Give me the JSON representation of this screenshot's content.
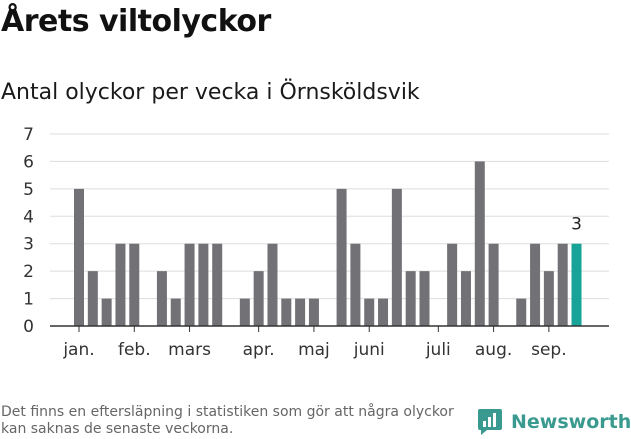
{
  "title": "Årets viltolyckor",
  "subtitle": "Antal olyckor per vecka i Örnsköldsvik",
  "footnote": "Det finns en eftersläpning i statistiken som gör att några olyckor kan saknas de senaste veckorna.",
  "brand": {
    "name": "Newsworthy",
    "icon": "newsworthy-logo-icon"
  },
  "colors": {
    "bar": "#727176",
    "highlight": "#17a398",
    "grid": "#dddddd",
    "axis": "#333333",
    "text": "#333333"
  },
  "chart_data": {
    "type": "bar",
    "title": "Antal olyckor per vecka i Örnsköldsvik",
    "xlabel": "",
    "ylabel": "",
    "ylim": [
      0,
      7
    ],
    "yticks": [
      0,
      1,
      2,
      3,
      4,
      5,
      6,
      7
    ],
    "grid": true,
    "legend": "none",
    "values": [
      5,
      2,
      1,
      3,
      3,
      0,
      2,
      1,
      3,
      3,
      3,
      0,
      1,
      2,
      3,
      1,
      1,
      1,
      0,
      5,
      3,
      1,
      1,
      5,
      2,
      2,
      0,
      3,
      2,
      6,
      3,
      0,
      1,
      3,
      2,
      3,
      3
    ],
    "highlight_index": 36,
    "data_labels": [
      {
        "index": 36,
        "text": "3"
      }
    ],
    "month_labels": [
      {
        "label": "jan.",
        "week": 1
      },
      {
        "label": "feb.",
        "week": 5
      },
      {
        "label": "mars",
        "week": 9
      },
      {
        "label": "apr.",
        "week": 14
      },
      {
        "label": "maj",
        "week": 18
      },
      {
        "label": "juni",
        "week": 22
      },
      {
        "label": "juli",
        "week": 27
      },
      {
        "label": "aug.",
        "week": 31
      },
      {
        "label": "sep.",
        "week": 35
      }
    ]
  }
}
